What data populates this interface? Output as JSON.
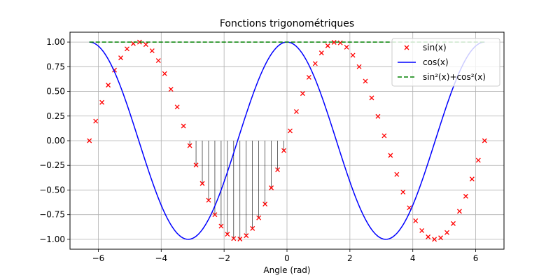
{
  "chart_data": {
    "type": "line",
    "title": "Fonctions trigonométriques",
    "xlabel": "Angle (rad)",
    "ylabel": "",
    "xlim": [
      -6.9,
      6.9
    ],
    "ylim": [
      -1.1,
      1.1
    ],
    "grid": true,
    "legend_position": "top-right",
    "x_ticks": [
      -6,
      -4,
      -2,
      0,
      2,
      4,
      6
    ],
    "x_tick_labels": [
      "−6",
      "−4",
      "−2",
      "0",
      "2",
      "4",
      "6"
    ],
    "y_ticks": [
      -1.0,
      -0.75,
      -0.5,
      -0.25,
      0.0,
      0.25,
      0.5,
      0.75,
      1.0
    ],
    "y_tick_labels": [
      "−1.00",
      "−0.75",
      "−0.50",
      "−0.25",
      "0.00",
      "0.25",
      "0.50",
      "0.75",
      "1.00"
    ],
    "x_range": [
      -6.283185,
      6.283185
    ],
    "series": [
      {
        "name": "sin(x)",
        "function": "sin",
        "style": "markers",
        "marker": "x",
        "color": "#ff0000",
        "points": 64
      },
      {
        "name": "cos(x)",
        "function": "cos",
        "style": "line",
        "color": "#0000ff",
        "points": 200
      },
      {
        "name": "sin²(x)+cos²(x)",
        "function": "one",
        "style": "dashed",
        "color": "#008000",
        "points": 200
      }
    ],
    "stem_region": {
      "series": "sin(x)",
      "x_from": -3.14159,
      "x_to": 0,
      "color": "#000000"
    }
  }
}
